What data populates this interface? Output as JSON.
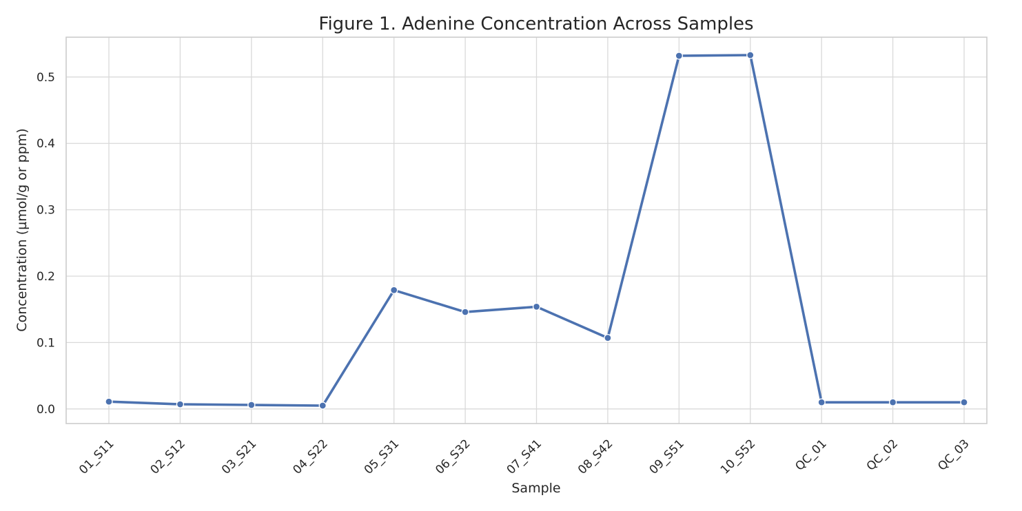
{
  "chart_data": {
    "type": "line",
    "title": "Figure 1. Adenine Concentration Across Samples",
    "xlabel": "Sample",
    "ylabel": "Concentration (µmol/g or ppm)",
    "categories": [
      "01_S11",
      "02_S12",
      "03_S21",
      "04_S22",
      "05_S31",
      "06_S32",
      "07_S41",
      "08_S42",
      "09_S51",
      "10_S52",
      "QC_01",
      "QC_02",
      "QC_03"
    ],
    "series": [
      {
        "values": [
          0.011,
          0.007,
          0.006,
          0.005,
          0.179,
          0.146,
          0.154,
          0.107,
          0.532,
          0.533,
          0.01,
          0.01,
          0.01
        ],
        "color": "#4c72b0"
      }
    ],
    "ylim": [
      -0.022,
      0.56
    ],
    "yticks": [
      "0.0",
      "0.1",
      "0.2",
      "0.3",
      "0.4",
      "0.5"
    ],
    "grid": true,
    "marker": "circle"
  }
}
